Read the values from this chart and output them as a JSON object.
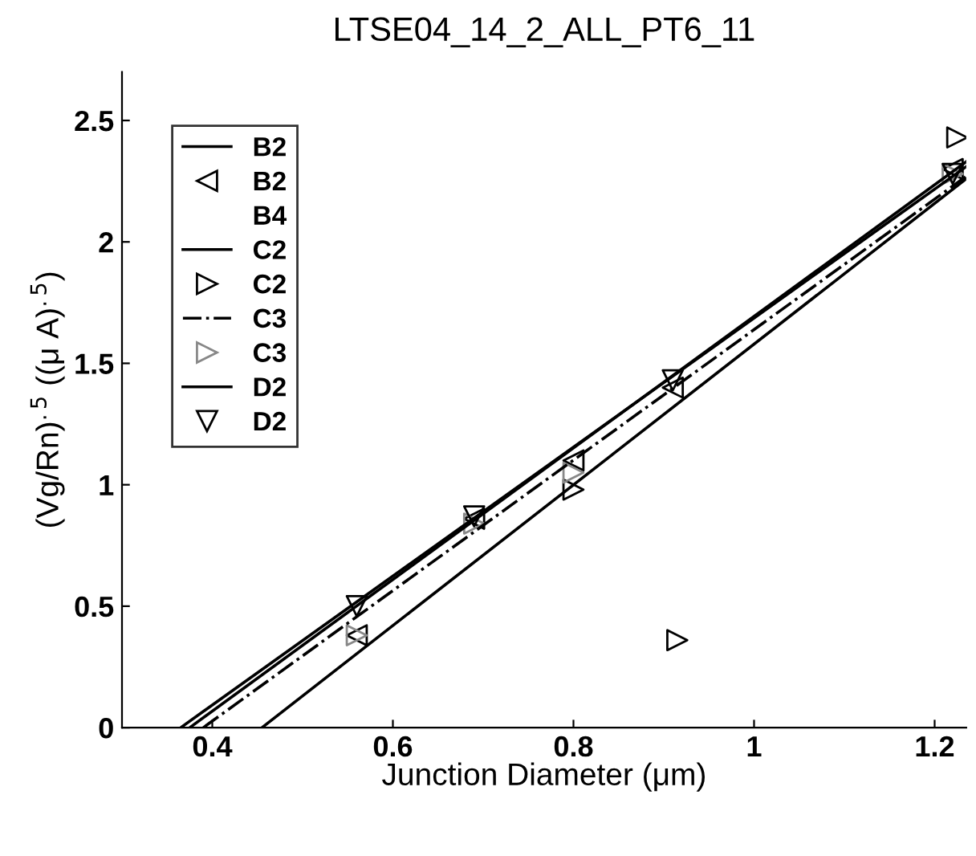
{
  "chart_data": {
    "type": "line",
    "title": "LTSE04_14_2_ALL_PT6_11",
    "xlabel": "Junction Diameter (μm)",
    "ylabel": "(Vg/Rn)$^{.5}$ ((μ A)$^{.5}$)",
    "xlim": [
      0.3,
      1.235
    ],
    "ylim": [
      0,
      2.7
    ],
    "xticks": [
      0.4,
      0.6,
      0.8,
      1,
      1.2
    ],
    "yticks": [
      0,
      0.5,
      1,
      1.5,
      2,
      2.5
    ],
    "grid": false,
    "legend": "top left",
    "series": [
      {
        "name": "B2",
        "color": "#000000",
        "line_style": "solid",
        "x": [
          0.365,
          1.235
        ],
        "values": [
          0,
          2.31
        ]
      },
      {
        "name": "B2",
        "type": "scatter",
        "color": "#000000",
        "marker": "triangle_left",
        "x": [
          0.56,
          0.69,
          0.8,
          0.91,
          1.22
        ],
        "values": [
          0.38,
          0.86,
          1.1,
          1.4,
          2.3
        ]
      },
      {
        "name": "B4",
        "type": "scatter",
        "color": "#000000",
        "marker": "none"
      },
      {
        "name": "C2",
        "color": "#000000",
        "line_style": "solid",
        "x": [
          0.455,
          1.235
        ],
        "values": [
          0,
          2.26
        ]
      },
      {
        "name": "C2",
        "type": "scatter",
        "color": "#000000",
        "marker": "triangle_right",
        "x": [
          0.8,
          0.915,
          1.225
        ],
        "values": [
          0.98,
          0.36,
          2.43
        ]
      },
      {
        "name": "C3",
        "color": "#000000",
        "line_style": "dashdot",
        "x": [
          0.39,
          1.235
        ],
        "values": [
          0,
          2.27
        ]
      },
      {
        "name": "C3",
        "type": "scatter",
        "color": "#888888",
        "marker": "triangle_right",
        "x": [
          0.56,
          0.69,
          0.8,
          1.22
        ],
        "values": [
          0.38,
          0.84,
          1.05,
          2.28
        ]
      },
      {
        "name": "D2",
        "color": "#000000",
        "line_style": "solid",
        "x": [
          0.375,
          1.235
        ],
        "values": [
          0,
          2.33
        ]
      },
      {
        "name": "D2",
        "type": "scatter",
        "color": "#000000",
        "marker": "triangle_down",
        "x": [
          0.56,
          0.69,
          0.91,
          1.22
        ],
        "values": [
          0.5,
          0.87,
          1.43,
          2.28
        ]
      }
    ]
  }
}
